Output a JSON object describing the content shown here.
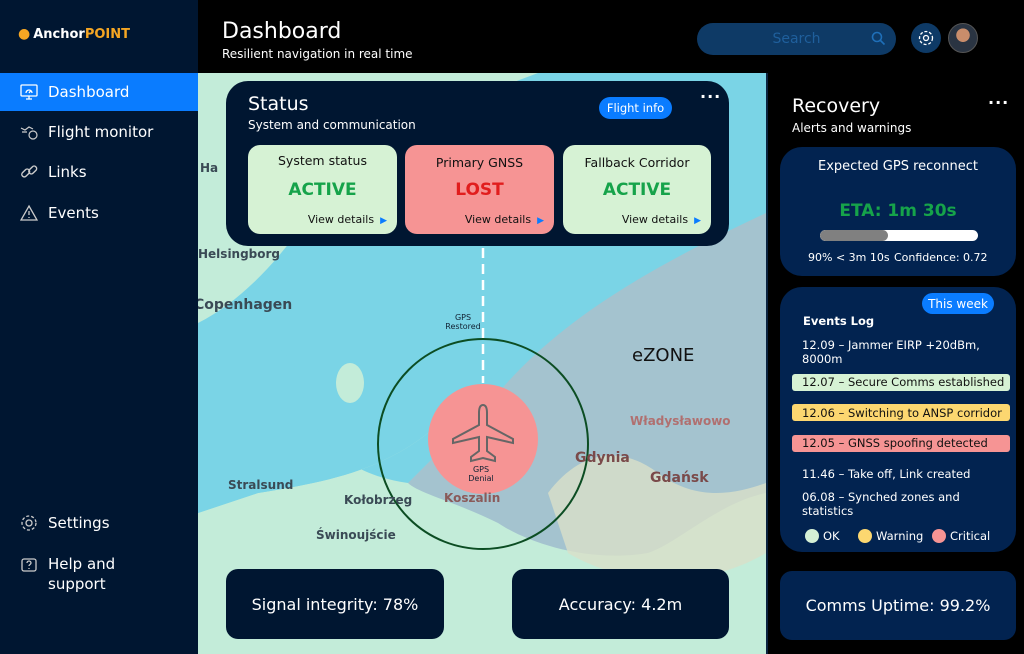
{
  "app": {
    "logo_prefix": "Anchor",
    "logo_suffix": "POINT"
  },
  "header": {
    "title": "Dashboard",
    "subtitle": "Resilient navigation in real time",
    "search_placeholder": "Search"
  },
  "sidebar": {
    "items": [
      {
        "label": "Dashboard",
        "icon": "monitor-gauge-icon",
        "active": true
      },
      {
        "label": "Flight monitor",
        "icon": "flight-path-icon"
      },
      {
        "label": "Links",
        "icon": "chain-link-icon"
      },
      {
        "label": "Events",
        "icon": "warning-triangle-icon"
      }
    ],
    "bottom": [
      {
        "label": "Settings",
        "icon": "gear-icon"
      },
      {
        "label": "Help and support",
        "icon": "help-icon"
      }
    ]
  },
  "status": {
    "title": "Status",
    "subtitle": "System and communication",
    "flight_info": "Flight info",
    "cards": [
      {
        "title": "System status",
        "value": "ACTIVE",
        "link": "View details",
        "state": "ok"
      },
      {
        "title": "Primary GNSS",
        "value": "LOST",
        "link": "View details",
        "state": "critical"
      },
      {
        "title": "Fallback Corridor",
        "value": "ACTIVE",
        "link": "View details",
        "state": "ok"
      }
    ]
  },
  "map": {
    "labels": [
      "Ha",
      "Helsingborg",
      "Copenhagen",
      "Stralsund",
      "Kołobrzeg",
      "Świnoujście",
      "Koszalin",
      "Gdynia",
      "Gdańsk",
      "Władysławowo"
    ],
    "zone": "eZONE",
    "gps_restored": "GPS Restored",
    "gps_denial": "GPS Denial"
  },
  "metrics": {
    "signal": "Signal integrity: 78%",
    "accuracy": "Accuracy: 4.2m"
  },
  "recovery": {
    "title": "Recovery",
    "subtitle": "Alerts and warnings",
    "reconnect_title": "Expected GPS reconnect",
    "eta": "ETA: 1m 30s",
    "progress": 0.43,
    "p90": "90% < 3m 10s",
    "confidence": "Confidence: 0.72"
  },
  "events": {
    "title": "Events Log",
    "filter": "This week",
    "items": [
      {
        "text": "12.09 – Jammer EIRP +20dBm, 8000m",
        "level": "none"
      },
      {
        "text": "12.07 – Secure Comms established",
        "level": "ok"
      },
      {
        "text": "12.06 – Switching to ANSP corridor",
        "level": "warning"
      },
      {
        "text": "12.05 – GNSS spoofing detected",
        "level": "critical"
      },
      {
        "text": "11.46 – Take off,  Link created",
        "level": "none"
      },
      {
        "text": "06.08 – Synched zones and statistics",
        "level": "none"
      }
    ],
    "legend": [
      {
        "label": "OK",
        "color": "#d5f0d5"
      },
      {
        "label": "Warning",
        "color": "#fcd770"
      },
      {
        "label": "Critical",
        "color": "#f69494"
      }
    ]
  },
  "comms": {
    "uptime": "Comms Uptime: 99.2%"
  },
  "colors": {
    "accent": "#0a7cff",
    "ok_bg": "#d6f2d4",
    "ok_text": "#16a34a",
    "critical_bg": "#f69494",
    "critical_text": "#e11d1d",
    "warning_bg": "#fcd770"
  }
}
